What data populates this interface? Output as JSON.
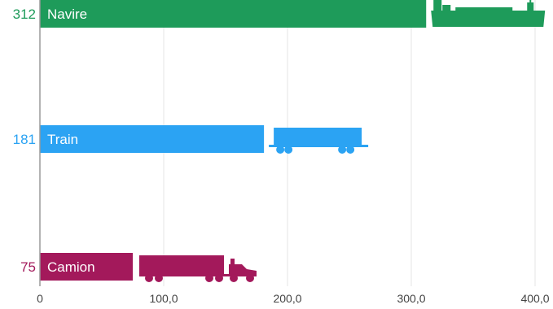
{
  "chart_data": {
    "type": "bar",
    "orientation": "horizontal",
    "categories": [
      "Navire",
      "Train",
      "Camion"
    ],
    "values": [
      312,
      181,
      75
    ],
    "value_labels": [
      "312",
      "181",
      "75"
    ],
    "colors": [
      "#1e9b5a",
      "#2ba3f3",
      "#a3195b"
    ],
    "icons": [
      "ship-icon",
      "train-car-icon",
      "truck-icon"
    ],
    "xlim": [
      0,
      400
    ],
    "x_ticks": [
      0,
      100,
      200,
      300,
      400
    ],
    "x_tick_labels": [
      "0",
      "100,0",
      "200,0",
      "300,0",
      "400,0"
    ],
    "grid": "vertical",
    "title": "",
    "xlabel": "",
    "ylabel": ""
  }
}
